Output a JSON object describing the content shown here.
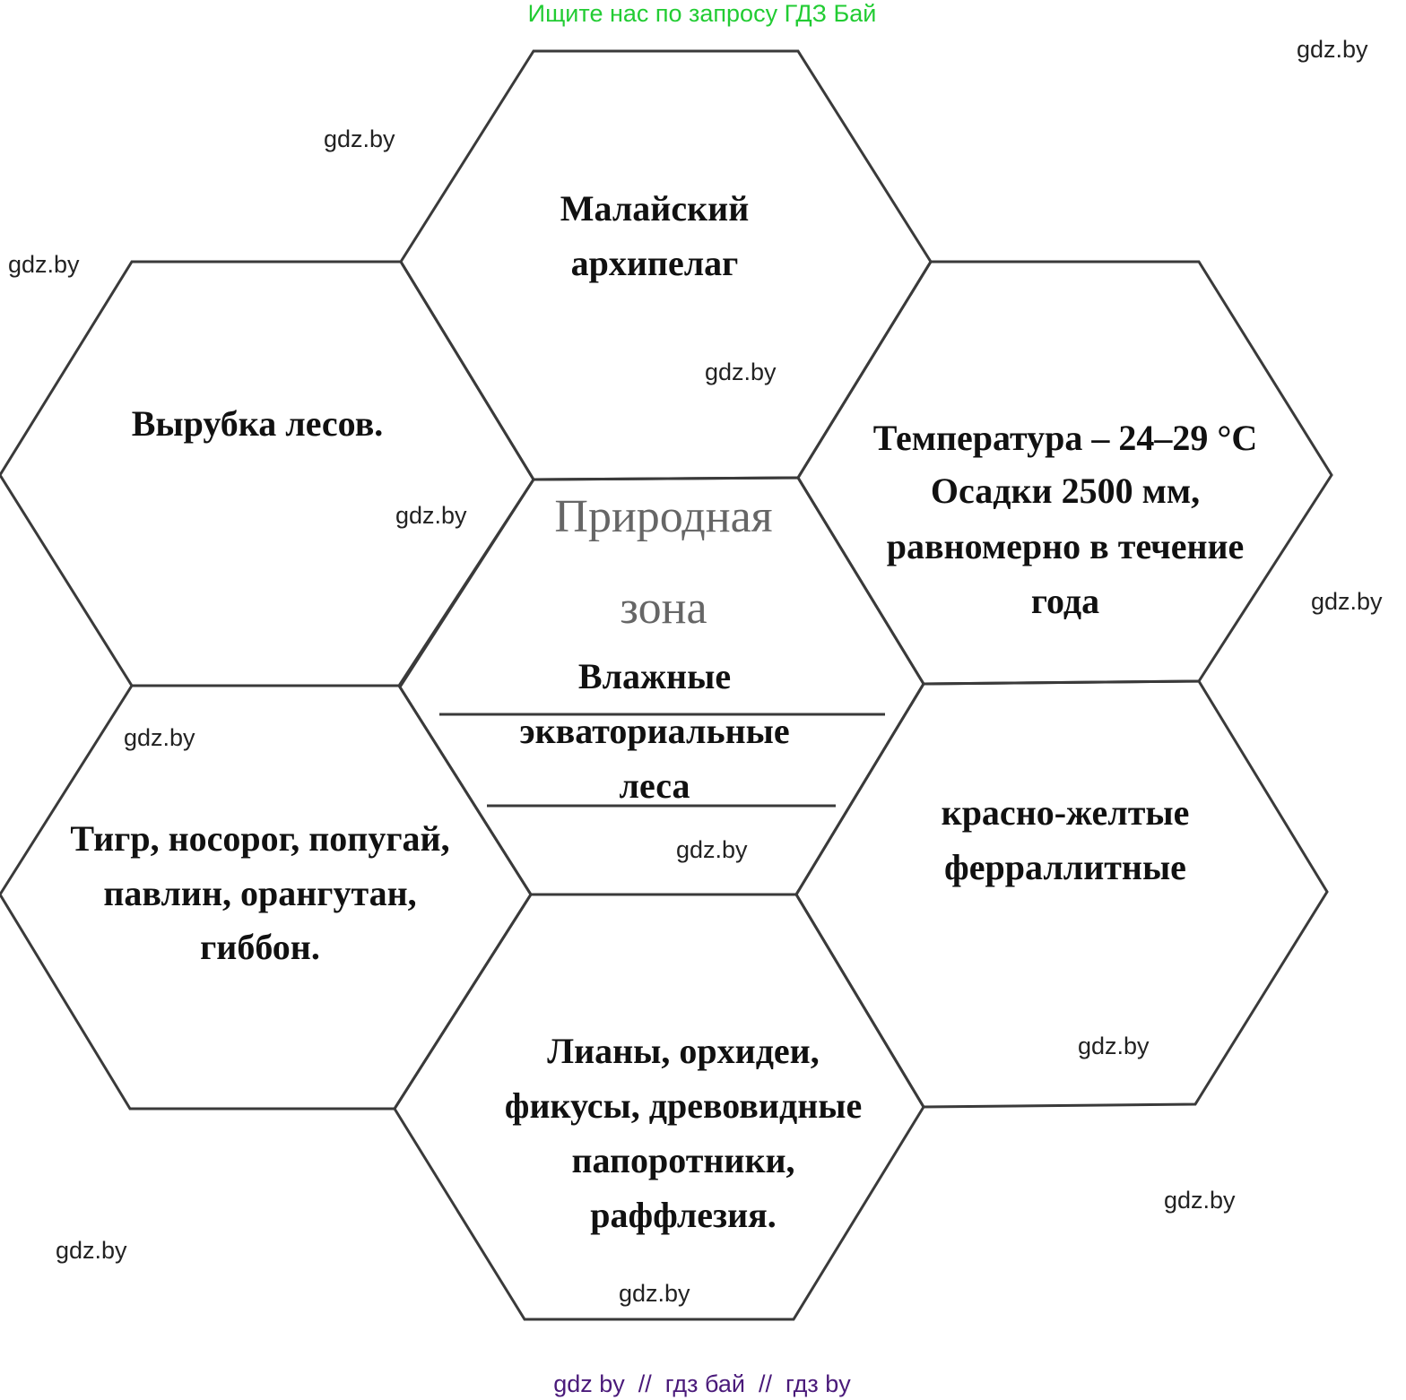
{
  "header": {
    "search_hint": "Ищите нас по запросу ГДЗ Бай"
  },
  "footer": {
    "links": "gdz by  //  гдз бай  //  гдз by"
  },
  "watermark": "gdz.by",
  "center": {
    "title": [
      "Природная",
      "зона"
    ],
    "answer": [
      "Влажные",
      "экваториальные",
      "леса"
    ]
  },
  "hexes": {
    "top": [
      "Малайский",
      "архипелаг"
    ],
    "left_upper": [
      "Вырубка лесов."
    ],
    "right_upper": [
      "Температура – 24–29 °С",
      "Осадки 2500 мм,",
      "равномерно в течение",
      "года"
    ],
    "left_lower": [
      "Тигр, носорог, попугай,",
      "павлин, орангутан,",
      "гиббон."
    ],
    "right_lower": [
      "красно-желтые",
      "ферраллитные"
    ],
    "bottom": [
      "Лианы, орхидеи,",
      "фикусы, древовидные",
      "папоротники,",
      "раффлезия."
    ]
  }
}
